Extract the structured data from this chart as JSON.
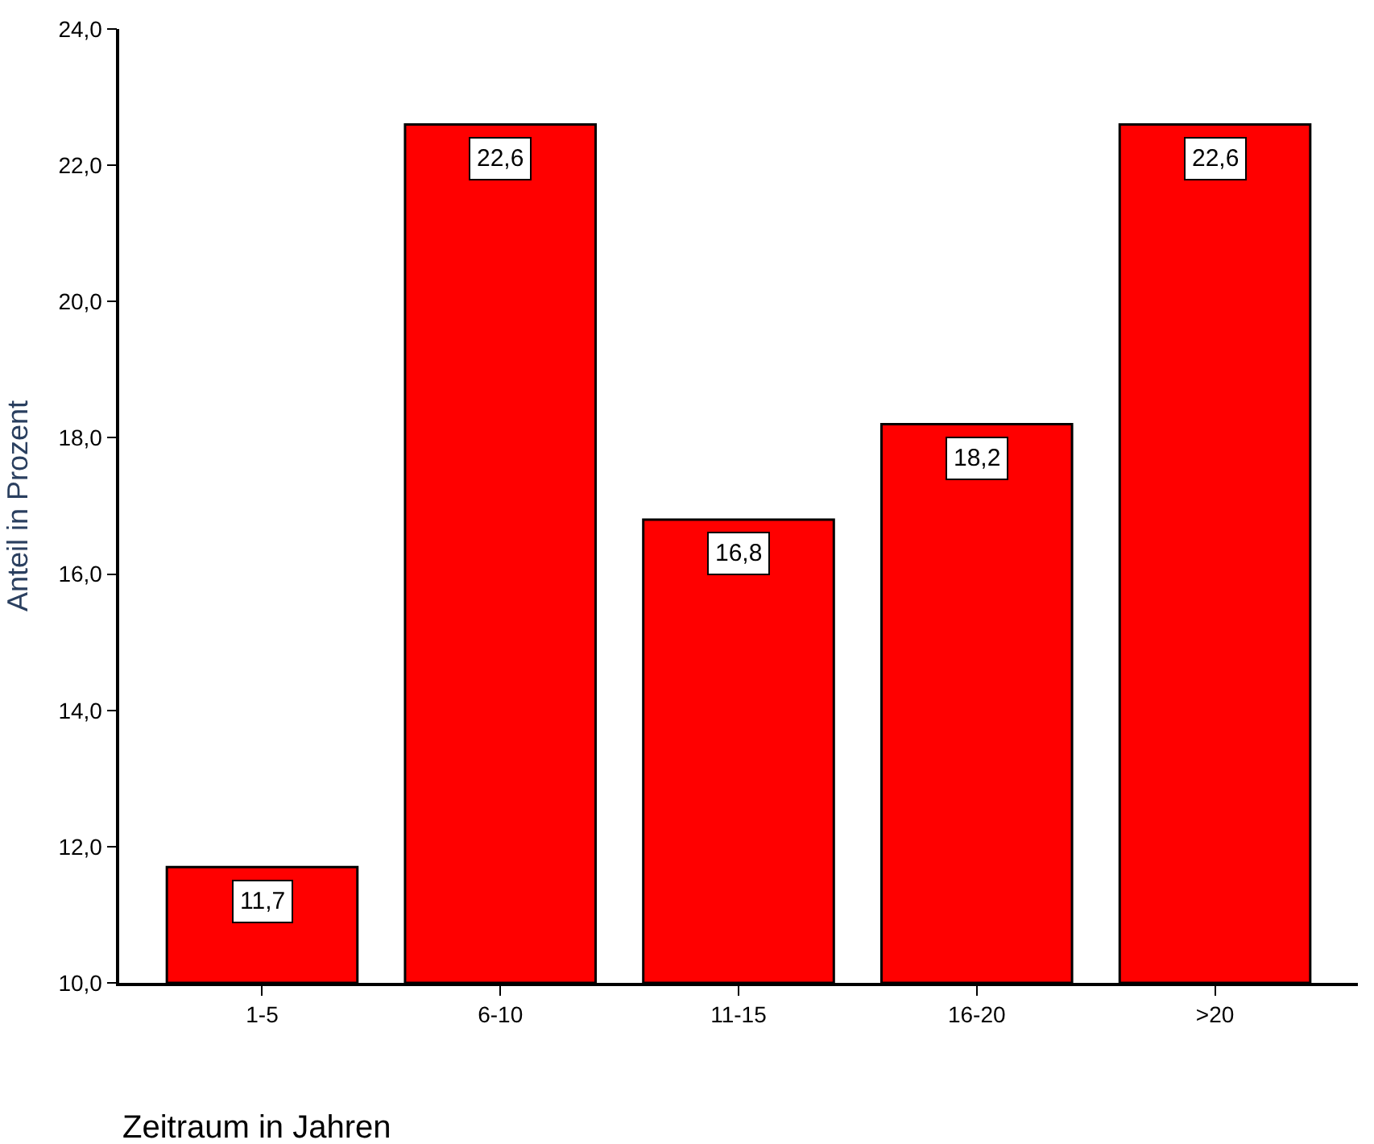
{
  "chart_data": {
    "type": "bar",
    "xlabel": "Zeitraum in Jahren",
    "ylabel": "Anteil in Prozent",
    "categories": [
      "1-5",
      "6-10",
      "11-15",
      "16-20",
      ">20"
    ],
    "values": [
      11.7,
      22.6,
      16.8,
      18.2,
      22.6
    ],
    "value_labels": [
      "11,7",
      "22,6",
      "16,8",
      "18,2",
      "22,6"
    ],
    "color": "#ff0000",
    "ylim": [
      10,
      24
    ],
    "yticks": [
      {
        "value": 10,
        "label": "10,0"
      },
      {
        "value": 12,
        "label": "12,0"
      },
      {
        "value": 14,
        "label": "14,0"
      },
      {
        "value": 16,
        "label": "16,0"
      },
      {
        "value": 18,
        "label": "18,0"
      },
      {
        "value": 20,
        "label": "20,0"
      },
      {
        "value": 22,
        "label": "22,0"
      },
      {
        "value": 24,
        "label": "24,0"
      }
    ],
    "legend": false
  }
}
